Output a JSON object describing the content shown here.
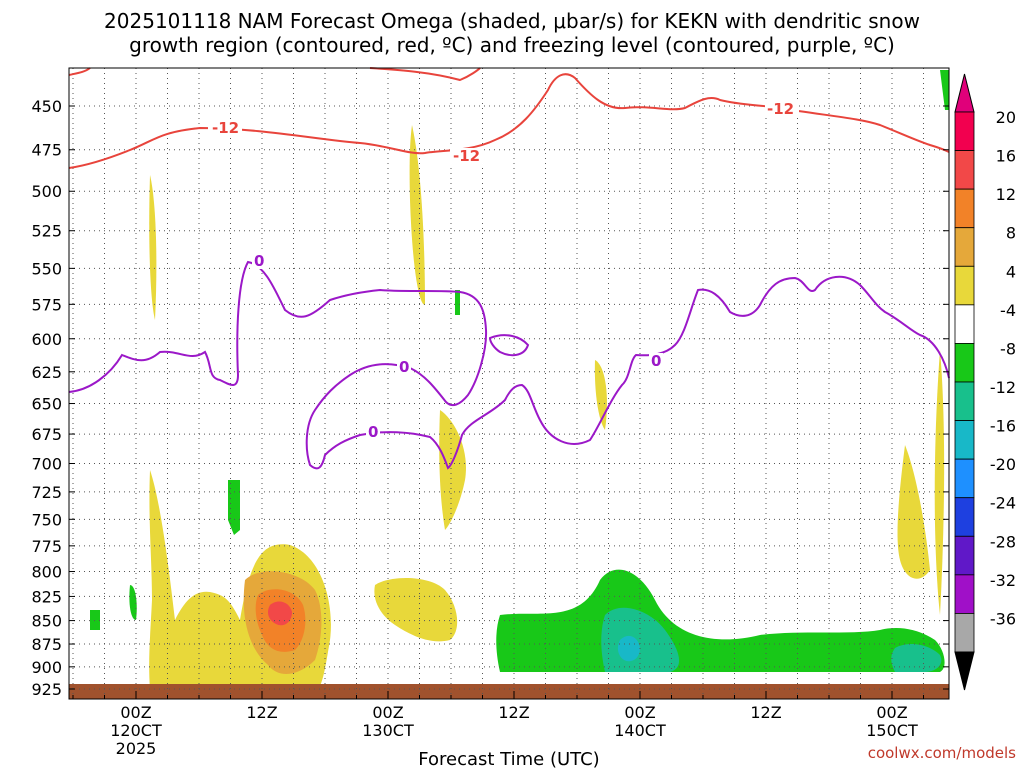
{
  "chart_data": {
    "type": "heatmap",
    "title_line1": "2025101118 NAM Forecast Omega (shaded, μbar/s) for KEKN with dendritic snow",
    "title_line2": "growth region (contoured, red, ºC) and freezing level (contoured, purple, ºC)",
    "xlabel": "Forecast Time (UTC)",
    "credit": "coolwx.com/models",
    "y_ticks": [
      "450",
      "475",
      "500",
      "525",
      "550",
      "575",
      "600",
      "625",
      "650",
      "675",
      "700",
      "725",
      "750",
      "775",
      "800",
      "825",
      "850",
      "875",
      "900",
      "925"
    ],
    "x_ticks": [
      {
        "l1": "00Z",
        "l2": "120CT",
        "l3": "2025"
      },
      {
        "l1": "12Z",
        "l2": "",
        "l3": ""
      },
      {
        "l1": "00Z",
        "l2": "130CT",
        "l3": ""
      },
      {
        "l1": "12Z",
        "l2": "",
        "l3": ""
      },
      {
        "l1": "00Z",
        "l2": "140CT",
        "l3": ""
      },
      {
        "l1": "12Z",
        "l2": "",
        "l3": ""
      },
      {
        "l1": "00Z",
        "l2": "150CT",
        "l3": ""
      }
    ],
    "colorbar_labels": [
      "20",
      "16",
      "12",
      "8",
      "4",
      "-4",
      "-8",
      "-12",
      "-16",
      "-20",
      "-24",
      "-28",
      "-32",
      "-36"
    ],
    "colorbar_colors": [
      "#f2004f",
      "#f24848",
      "#f28228",
      "#e5a83a",
      "#e8d83a",
      "#ffffff",
      "#18c818",
      "#18c08c",
      "#18b8c8",
      "#1e90ff",
      "#1e40e0",
      "#6018c8",
      "#a010c8",
      "#a8a8a8"
    ],
    "contour_labels": {
      "red": "-12",
      "purple": "0"
    }
  }
}
